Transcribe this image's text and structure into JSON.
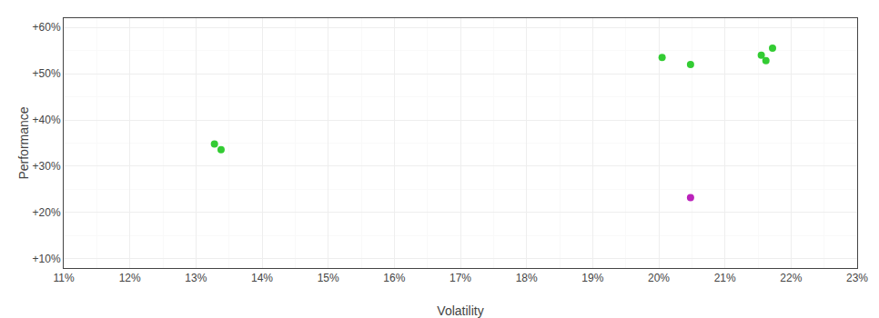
{
  "chart_data": {
    "type": "scatter",
    "xlabel": "Volatility",
    "ylabel": "Performance",
    "xlim": [
      0.11,
      0.23
    ],
    "ylim": [
      0.08,
      0.62
    ],
    "xticks": [
      {
        "value": 0.11,
        "label": "11%"
      },
      {
        "value": 0.12,
        "label": "12%"
      },
      {
        "value": 0.13,
        "label": "13%"
      },
      {
        "value": 0.14,
        "label": "14%"
      },
      {
        "value": 0.15,
        "label": "15%"
      },
      {
        "value": 0.16,
        "label": "16%"
      },
      {
        "value": 0.17,
        "label": "17%"
      },
      {
        "value": 0.18,
        "label": "18%"
      },
      {
        "value": 0.19,
        "label": "19%"
      },
      {
        "value": 0.2,
        "label": "20%"
      },
      {
        "value": 0.21,
        "label": "21%"
      },
      {
        "value": 0.22,
        "label": "22%"
      },
      {
        "value": 0.23,
        "label": "23%"
      }
    ],
    "yticks": [
      {
        "value": 0.1,
        "label": "+10%"
      },
      {
        "value": 0.2,
        "label": "+20%"
      },
      {
        "value": 0.3,
        "label": "+30%"
      },
      {
        "value": 0.4,
        "label": "+40%"
      },
      {
        "value": 0.5,
        "label": "+50%"
      },
      {
        "value": 0.6,
        "label": "+60%"
      }
    ],
    "grid": true,
    "series": [
      {
        "color": "#33cc33",
        "x": [
          0.1328,
          0.1338,
          0.2005,
          0.2048,
          0.2155,
          0.2162,
          0.2172
        ],
        "values": [
          0.348,
          0.336,
          0.535,
          0.52,
          0.54,
          0.528,
          0.555
        ]
      },
      {
        "color": "#bb22bb",
        "x": [
          0.2048
        ],
        "values": [
          0.232
        ]
      }
    ]
  }
}
